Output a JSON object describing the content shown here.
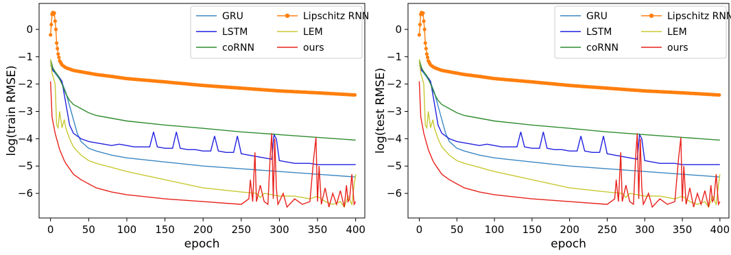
{
  "colors": {
    "GRU": "#3a86c2",
    "LSTM": "#1f1fe0",
    "coRNN": "#2e8b2e",
    "Lipschitz RNN": "#ff7f0e",
    "LEM": "#c8c832",
    "ours": "#e8201a"
  },
  "chart_data": [
    {
      "type": "line",
      "xlabel": "epoch",
      "ylabel": "log(train RMSE)",
      "xlim": [
        -15,
        412
      ],
      "ylim": [
        -6.9,
        0.95
      ],
      "xticks": [
        0,
        50,
        100,
        150,
        200,
        250,
        300,
        350,
        400
      ],
      "yticks": [
        -6,
        -5,
        -4,
        -3,
        -2,
        -1,
        0
      ],
      "legend": {
        "placement": "top-right",
        "columns": 2
      },
      "series": [
        {
          "name": "GRU",
          "marker": "none",
          "x": [
            0,
            3,
            6,
            10,
            15,
            20,
            25,
            30,
            35,
            40,
            50,
            60,
            80,
            100,
            150,
            200,
            250,
            300,
            350,
            400
          ],
          "y": [
            -1.3,
            -1.5,
            -1.6,
            -1.75,
            -1.95,
            -2.3,
            -2.8,
            -3.3,
            -3.8,
            -4.1,
            -4.35,
            -4.45,
            -4.6,
            -4.7,
            -4.85,
            -5.0,
            -5.1,
            -5.2,
            -5.3,
            -5.4
          ]
        },
        {
          "name": "LSTM",
          "marker": "none",
          "x": [
            0,
            3,
            6,
            10,
            15,
            20,
            25,
            30,
            40,
            50,
            60,
            70,
            80,
            90,
            100,
            110,
            120,
            130,
            135,
            140,
            150,
            160,
            165,
            170,
            180,
            190,
            200,
            210,
            215,
            220,
            230,
            240,
            245,
            250,
            260,
            270,
            280,
            290,
            293,
            296,
            300,
            310,
            320,
            330,
            340,
            350,
            360,
            370,
            380,
            390,
            400
          ],
          "y": [
            -1.2,
            -1.5,
            -1.55,
            -1.7,
            -1.9,
            -2.7,
            -3.5,
            -3.8,
            -4.0,
            -4.1,
            -4.15,
            -4.2,
            -4.25,
            -4.2,
            -4.25,
            -4.3,
            -4.3,
            -4.3,
            -3.75,
            -4.3,
            -4.35,
            -4.35,
            -3.75,
            -4.35,
            -4.4,
            -4.4,
            -4.45,
            -4.45,
            -3.9,
            -4.45,
            -4.5,
            -4.5,
            -3.9,
            -4.55,
            -4.6,
            -4.65,
            -4.7,
            -4.75,
            -3.85,
            -4.0,
            -4.8,
            -4.85,
            -4.9,
            -4.9,
            -4.9,
            -4.95,
            -4.95,
            -4.95,
            -4.95,
            -4.95,
            -4.95
          ]
        },
        {
          "name": "coRNN",
          "marker": "none",
          "x": [
            0,
            3,
            6,
            10,
            15,
            20,
            25,
            30,
            40,
            50,
            60,
            80,
            100,
            150,
            200,
            250,
            300,
            350,
            400
          ],
          "y": [
            -1.1,
            -1.4,
            -1.55,
            -1.7,
            -2.0,
            -2.35,
            -2.6,
            -2.75,
            -2.9,
            -3.05,
            -3.15,
            -3.25,
            -3.35,
            -3.5,
            -3.62,
            -3.75,
            -3.85,
            -3.95,
            -4.05
          ]
        },
        {
          "name": "Lipschitz RNN",
          "marker": "dot",
          "x": [
            0,
            2,
            3,
            4,
            5,
            6,
            7,
            8,
            10,
            12,
            15,
            20,
            25,
            30,
            40,
            50,
            60,
            80,
            100,
            150,
            200,
            250,
            300,
            350,
            400
          ],
          "y": [
            -0.2,
            0.55,
            0.62,
            0.55,
            0.6,
            0.3,
            0.0,
            -0.5,
            -0.9,
            -1.15,
            -1.3,
            -1.4,
            -1.45,
            -1.5,
            -1.55,
            -1.6,
            -1.65,
            -1.72,
            -1.8,
            -1.92,
            -2.05,
            -2.15,
            -2.25,
            -2.32,
            -2.4
          ]
        },
        {
          "name": "LEM",
          "marker": "none",
          "x": [
            0,
            2,
            4,
            6,
            8,
            10,
            12,
            15,
            18,
            20,
            25,
            30,
            40,
            50,
            60,
            80,
            100,
            150,
            200,
            250,
            270,
            275,
            280,
            300,
            320,
            340,
            350,
            360,
            370,
            380,
            385,
            390,
            395,
            398,
            400
          ],
          "y": [
            -1.1,
            -1.6,
            -1.8,
            -2.0,
            -3.5,
            -3.6,
            -3.0,
            -3.6,
            -3.3,
            -3.6,
            -4.0,
            -4.3,
            -4.6,
            -4.8,
            -4.9,
            -5.05,
            -5.2,
            -5.5,
            -5.8,
            -5.95,
            -6.0,
            -6.15,
            -6.0,
            -6.1,
            -6.1,
            -6.2,
            -6.1,
            -6.3,
            -6.4,
            -6.3,
            -6.5,
            -6.1,
            -6.4,
            -5.7,
            -5.3
          ]
        },
        {
          "name": "ours",
          "marker": "none",
          "x": [
            0,
            2,
            4,
            6,
            8,
            10,
            12,
            15,
            18,
            20,
            25,
            30,
            40,
            50,
            60,
            80,
            100,
            150,
            200,
            250,
            260,
            262,
            265,
            268,
            270,
            275,
            280,
            285,
            288,
            290,
            292,
            294,
            296,
            298,
            300,
            305,
            310,
            320,
            330,
            340,
            345,
            348,
            350,
            352,
            355,
            360,
            365,
            370,
            375,
            380,
            385,
            388,
            390,
            392,
            395,
            398,
            400
          ],
          "y": [
            -1.9,
            -3.2,
            -3.5,
            -3.8,
            -4.0,
            -4.2,
            -4.4,
            -4.6,
            -4.8,
            -4.9,
            -5.1,
            -5.3,
            -5.5,
            -5.65,
            -5.8,
            -5.95,
            -6.05,
            -6.2,
            -6.3,
            -6.4,
            -6.2,
            -5.5,
            -6.3,
            -4.5,
            -6.3,
            -5.7,
            -6.3,
            -6.4,
            -4.6,
            -3.8,
            -6.2,
            -4.0,
            -5.8,
            -6.4,
            -6.3,
            -6.0,
            -6.5,
            -6.2,
            -6.4,
            -6.3,
            -4.7,
            -3.95,
            -6.3,
            -5.0,
            -6.4,
            -5.8,
            -6.5,
            -6.0,
            -6.4,
            -5.9,
            -6.5,
            -5.7,
            -6.3,
            -6.2,
            -5.3,
            -6.4,
            -6.3
          ]
        }
      ]
    },
    {
      "type": "line",
      "xlabel": "epoch",
      "ylabel": "log(test RMSE)",
      "xlim": [
        -15,
        412
      ],
      "ylim": [
        -6.9,
        0.95
      ],
      "xticks": [
        0,
        50,
        100,
        150,
        200,
        250,
        300,
        350,
        400
      ],
      "yticks": [
        -6,
        -5,
        -4,
        -3,
        -2,
        -1,
        0
      ],
      "legend": {
        "placement": "top-right",
        "columns": 2
      },
      "series": [
        {
          "name": "GRU",
          "marker": "none",
          "x": [
            0,
            3,
            6,
            10,
            15,
            20,
            25,
            30,
            35,
            40,
            50,
            60,
            80,
            100,
            150,
            200,
            250,
            300,
            350,
            400
          ],
          "y": [
            -1.3,
            -1.5,
            -1.6,
            -1.75,
            -1.95,
            -2.3,
            -2.8,
            -3.3,
            -3.8,
            -4.1,
            -4.35,
            -4.45,
            -4.6,
            -4.7,
            -4.85,
            -5.0,
            -5.1,
            -5.2,
            -5.3,
            -5.4
          ]
        },
        {
          "name": "LSTM",
          "marker": "none",
          "x": [
            0,
            3,
            6,
            10,
            15,
            20,
            25,
            30,
            40,
            50,
            60,
            70,
            80,
            90,
            100,
            110,
            120,
            130,
            135,
            140,
            150,
            160,
            165,
            170,
            180,
            190,
            200,
            210,
            215,
            220,
            230,
            240,
            245,
            250,
            260,
            270,
            280,
            290,
            293,
            296,
            300,
            310,
            320,
            330,
            340,
            350,
            360,
            370,
            380,
            390,
            400
          ],
          "y": [
            -1.2,
            -1.5,
            -1.55,
            -1.7,
            -1.9,
            -2.7,
            -3.5,
            -3.8,
            -4.0,
            -4.1,
            -4.15,
            -4.2,
            -4.25,
            -4.2,
            -4.25,
            -4.3,
            -4.3,
            -4.3,
            -3.75,
            -4.3,
            -4.35,
            -4.35,
            -3.75,
            -4.35,
            -4.4,
            -4.4,
            -4.45,
            -4.45,
            -3.9,
            -4.45,
            -4.5,
            -4.5,
            -3.9,
            -4.55,
            -4.6,
            -4.65,
            -4.7,
            -4.75,
            -3.85,
            -4.0,
            -4.8,
            -4.85,
            -4.9,
            -4.9,
            -4.9,
            -4.95,
            -4.95,
            -4.95,
            -4.95,
            -4.95,
            -4.95
          ]
        },
        {
          "name": "coRNN",
          "marker": "none",
          "x": [
            0,
            3,
            6,
            10,
            15,
            20,
            25,
            30,
            40,
            50,
            60,
            80,
            100,
            150,
            200,
            250,
            300,
            350,
            400
          ],
          "y": [
            -1.1,
            -1.4,
            -1.55,
            -1.7,
            -2.0,
            -2.35,
            -2.6,
            -2.75,
            -2.9,
            -3.05,
            -3.15,
            -3.25,
            -3.35,
            -3.5,
            -3.62,
            -3.75,
            -3.85,
            -3.95,
            -4.05
          ]
        },
        {
          "name": "Lipschitz RNN",
          "marker": "dot",
          "x": [
            0,
            2,
            3,
            4,
            5,
            6,
            7,
            8,
            10,
            12,
            15,
            20,
            25,
            30,
            40,
            50,
            60,
            80,
            100,
            150,
            200,
            250,
            300,
            350,
            400
          ],
          "y": [
            -0.2,
            0.55,
            0.62,
            0.55,
            0.6,
            0.3,
            0.0,
            -0.5,
            -0.9,
            -1.15,
            -1.3,
            -1.4,
            -1.45,
            -1.5,
            -1.55,
            -1.6,
            -1.65,
            -1.72,
            -1.8,
            -1.92,
            -2.05,
            -2.15,
            -2.25,
            -2.32,
            -2.4
          ]
        },
        {
          "name": "LEM",
          "marker": "none",
          "x": [
            0,
            2,
            4,
            6,
            8,
            10,
            12,
            15,
            18,
            20,
            25,
            30,
            40,
            50,
            60,
            80,
            100,
            150,
            200,
            250,
            270,
            275,
            280,
            300,
            320,
            340,
            350,
            360,
            370,
            380,
            385,
            390,
            395,
            398,
            400
          ],
          "y": [
            -1.1,
            -1.6,
            -1.8,
            -2.0,
            -3.5,
            -3.6,
            -3.0,
            -3.6,
            -3.3,
            -3.6,
            -4.0,
            -4.3,
            -4.6,
            -4.8,
            -4.9,
            -5.05,
            -5.2,
            -5.5,
            -5.8,
            -5.95,
            -6.0,
            -6.15,
            -6.0,
            -6.1,
            -6.1,
            -6.2,
            -6.1,
            -6.3,
            -6.4,
            -6.3,
            -6.5,
            -6.1,
            -6.4,
            -5.7,
            -5.3
          ]
        },
        {
          "name": "ours",
          "marker": "none",
          "x": [
            0,
            2,
            4,
            6,
            8,
            10,
            12,
            15,
            18,
            20,
            25,
            30,
            40,
            50,
            60,
            80,
            100,
            150,
            200,
            250,
            260,
            262,
            265,
            268,
            270,
            275,
            280,
            285,
            288,
            290,
            292,
            294,
            296,
            298,
            300,
            305,
            310,
            320,
            330,
            340,
            345,
            348,
            350,
            352,
            355,
            360,
            365,
            370,
            375,
            380,
            385,
            388,
            390,
            392,
            395,
            398,
            400
          ],
          "y": [
            -1.9,
            -3.2,
            -3.5,
            -3.8,
            -4.0,
            -4.2,
            -4.4,
            -4.6,
            -4.8,
            -4.9,
            -5.1,
            -5.3,
            -5.5,
            -5.65,
            -5.8,
            -5.95,
            -6.05,
            -6.2,
            -6.3,
            -6.4,
            -6.2,
            -5.5,
            -6.3,
            -4.5,
            -6.3,
            -5.7,
            -6.3,
            -6.4,
            -4.6,
            -3.8,
            -6.2,
            -4.0,
            -5.8,
            -6.4,
            -6.3,
            -6.0,
            -6.5,
            -6.2,
            -6.4,
            -6.3,
            -4.7,
            -3.95,
            -6.3,
            -5.0,
            -6.4,
            -5.8,
            -6.5,
            -6.0,
            -6.4,
            -5.9,
            -6.5,
            -5.7,
            -6.3,
            -6.2,
            -5.3,
            -6.4,
            -6.3
          ]
        }
      ]
    }
  ]
}
